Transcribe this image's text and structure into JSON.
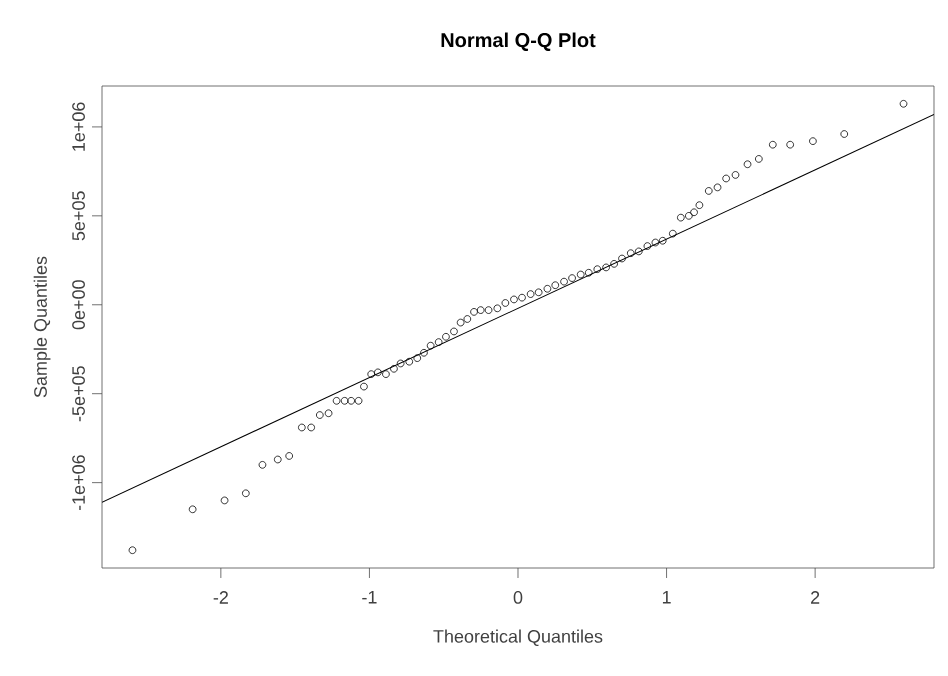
{
  "chart_data": {
    "type": "scatter",
    "title": "Normal Q-Q Plot",
    "xlabel": "Theoretical Quantiles",
    "ylabel": "Sample Quantiles",
    "xlim": [
      -2.8,
      2.8
    ],
    "ylim": [
      -1480000,
      1230000
    ],
    "xticks": [
      -2,
      -1,
      0,
      1,
      2
    ],
    "yticks": [
      {
        "value": -1000000,
        "label": "-1e+06"
      },
      {
        "value": -500000,
        "label": "-5e+05"
      },
      {
        "value": 0,
        "label": "0e+00"
      },
      {
        "value": 500000,
        "label": "5e+05"
      },
      {
        "value": 1000000,
        "label": "1e+06"
      }
    ],
    "series": [
      {
        "marker": "circle",
        "color": "#000000",
        "x": [
          -2.595,
          -2.19,
          -1.975,
          -1.832,
          -1.72,
          -1.617,
          -1.54,
          -1.455,
          -1.392,
          -1.334,
          -1.275,
          -1.221,
          -1.167,
          -1.123,
          -1.073,
          -1.037,
          -0.988,
          -0.943,
          -0.889,
          -0.835,
          -0.79,
          -0.732,
          -0.678,
          -0.633,
          -0.588,
          -0.534,
          -0.485,
          -0.431,
          -0.386,
          -0.341,
          -0.296,
          -0.251,
          -0.198,
          -0.139,
          -0.085,
          -0.027,
          0.027,
          0.085,
          0.139,
          0.198,
          0.251,
          0.31,
          0.364,
          0.422,
          0.476,
          0.534,
          0.593,
          0.647,
          0.7,
          0.759,
          0.813,
          0.871,
          0.925,
          0.974,
          1.042,
          1.096,
          1.15,
          1.185,
          1.221,
          1.284,
          1.343,
          1.401,
          1.464,
          1.545,
          1.621,
          1.715,
          1.832,
          1.985,
          2.196,
          2.595
        ],
        "values": [
          -1380000,
          -1150000,
          -1100000,
          -1060000,
          -900000,
          -870000,
          -850000,
          -690000,
          -690000,
          -620000,
          -610000,
          -540000,
          -540000,
          -540000,
          -540000,
          -460000,
          -390000,
          -380000,
          -390000,
          -360000,
          -330000,
          -320000,
          -300000,
          -270000,
          -230000,
          -210000,
          -180000,
          -150000,
          -100000,
          -80000,
          -40000,
          -30000,
          -30000,
          -20000,
          10000,
          30000,
          40000,
          60000,
          70000,
          90000,
          110000,
          130000,
          150000,
          170000,
          180000,
          200000,
          210000,
          230000,
          260000,
          290000,
          300000,
          330000,
          350000,
          360000,
          400000,
          490000,
          500000,
          520000,
          560000,
          640000,
          660000,
          710000,
          730000,
          790000,
          820000,
          900000,
          900000,
          920000,
          960000,
          1130000
        ]
      },
      {
        "type": "line",
        "line_style": "solid",
        "color": "#000000",
        "x": [
          -2.8,
          2.8
        ],
        "values": [
          -1110000,
          1070000
        ]
      }
    ]
  }
}
